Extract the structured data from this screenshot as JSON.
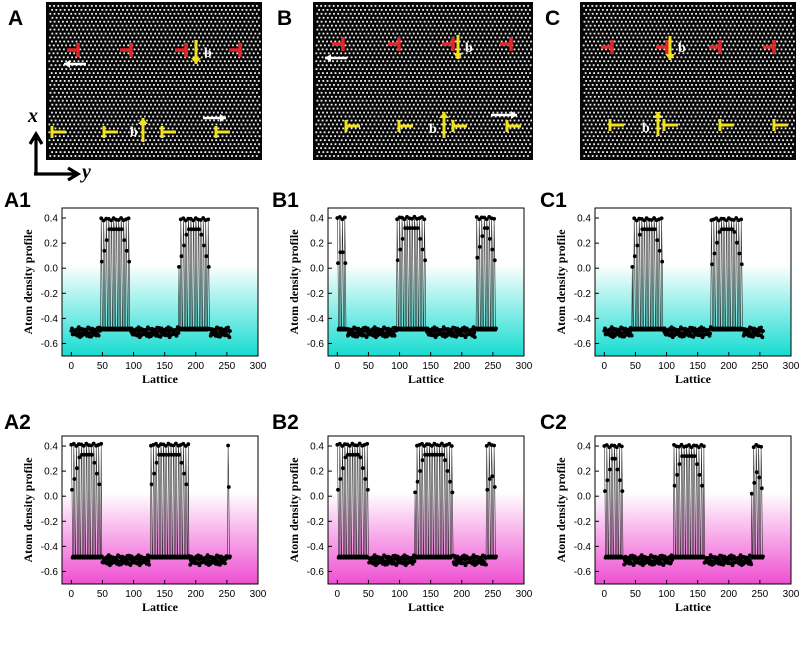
{
  "colors": {
    "dislocation_top": "#e0282a",
    "dislocation_bottom": "#f2e21c",
    "cyan": "#16dcd0",
    "magenta": "#ee4fd2",
    "atoms": "#eeeeee"
  },
  "panels": {
    "A": "A",
    "B": "B",
    "C": "C",
    "A1": "A1",
    "B1": "B1",
    "C1": "C1",
    "A2": "A2",
    "B2": "B2",
    "C2": "C2"
  },
  "coordinate_axes": {
    "x": "x",
    "y": "y"
  },
  "burgers_label": "b",
  "snapshots": [
    {
      "id": "A",
      "top_dislocations": 4,
      "bottom_dislocations": 5,
      "label_top": "b",
      "label_bottom": "b",
      "arrow_top": "left",
      "arrow_bottom": "right"
    },
    {
      "id": "B",
      "top_dislocations": 4,
      "bottom_dislocations": 5,
      "label_top": "b",
      "label_bottom": "b",
      "arrow_top": "left",
      "arrow_bottom": "right"
    },
    {
      "id": "C",
      "top_dislocations": 4,
      "bottom_dislocations": 4,
      "label_top": "b",
      "label_bottom": "b",
      "arrow_top": "none",
      "arrow_bottom": "none"
    }
  ],
  "chart_data": [
    {
      "id": "A1",
      "type": "scatter",
      "series_style": "line+markers",
      "xlabel": "Lattice",
      "ylabel": "Atom density profile",
      "xlim": [
        -15,
        300
      ],
      "ylim": [
        -0.7,
        0.48
      ],
      "xticks": [
        0,
        50,
        100,
        150,
        200,
        250,
        300
      ],
      "yticks": [
        -0.6,
        -0.4,
        -0.2,
        0.0,
        0.2,
        0.4
      ],
      "ytick_labels": [
        "-0.6",
        "-0.4",
        "-0.2",
        "0.0",
        "0.2",
        "0.4"
      ],
      "background_gradient": "cyan",
      "n_points": 256,
      "lattice_max": 255,
      "high_density_bands": [
        [
          47,
          95
        ],
        [
          173,
          221
        ]
      ],
      "low_level": -0.5,
      "high_level": 0.39
    },
    {
      "id": "B1",
      "type": "scatter",
      "series_style": "line+markers",
      "xlabel": "Lattice",
      "ylabel": "Atom density profile",
      "xlim": [
        -15,
        300
      ],
      "ylim": [
        -0.7,
        0.48
      ],
      "xticks": [
        0,
        50,
        100,
        150,
        200,
        250,
        300
      ],
      "yticks": [
        -0.6,
        -0.4,
        -0.2,
        0.0,
        0.2,
        0.4
      ],
      "ytick_labels": [
        "-0.6",
        "-0.4",
        "-0.2",
        "0.0",
        "0.2",
        "0.4"
      ],
      "background_gradient": "cyan",
      "n_points": 256,
      "lattice_max": 255,
      "high_density_bands": [
        [
          0,
          14
        ],
        [
          95,
          143
        ],
        [
          222,
          255
        ]
      ],
      "low_level": -0.5,
      "high_level": 0.4
    },
    {
      "id": "C1",
      "type": "scatter",
      "series_style": "line+markers",
      "xlabel": "Lattice",
      "ylabel": "Atom density profile",
      "xlim": [
        -15,
        300
      ],
      "ylim": [
        -0.7,
        0.48
      ],
      "xticks": [
        0,
        50,
        100,
        150,
        200,
        250,
        300
      ],
      "yticks": [
        -0.6,
        -0.4,
        -0.2,
        0.0,
        0.2,
        0.4
      ],
      "ytick_labels": [
        "-0.6",
        "-0.4",
        "-0.2",
        "0.0",
        "0.2",
        "0.4"
      ],
      "background_gradient": "cyan",
      "n_points": 256,
      "lattice_max": 255,
      "high_density_bands": [
        [
          45,
          95
        ],
        [
          172,
          222
        ]
      ],
      "low_level": -0.5,
      "high_level": 0.39
    },
    {
      "id": "A2",
      "type": "scatter",
      "series_style": "line+markers",
      "xlabel": "Lattice",
      "ylabel": "Atom density profile",
      "xlim": [
        -15,
        300
      ],
      "ylim": [
        -0.7,
        0.48
      ],
      "xticks": [
        0,
        50,
        100,
        150,
        200,
        250,
        300
      ],
      "yticks": [
        -0.6,
        -0.4,
        -0.2,
        0.0,
        0.2,
        0.4
      ],
      "ytick_labels": [
        "-0.6",
        "-0.4",
        "-0.2",
        "0.0",
        "0.2",
        "0.4"
      ],
      "background_gradient": "magenta",
      "n_points": 256,
      "lattice_max": 255,
      "high_density_bands": [
        [
          0,
          48
        ],
        [
          126,
          188
        ],
        [
          250,
          255
        ]
      ],
      "low_level": -0.5,
      "high_level": 0.41
    },
    {
      "id": "B2",
      "type": "scatter",
      "series_style": "line+markers",
      "xlabel": "Lattice",
      "ylabel": "Atom density profile",
      "xlim": [
        -15,
        300
      ],
      "ylim": [
        -0.7,
        0.48
      ],
      "xticks": [
        0,
        50,
        100,
        150,
        200,
        250,
        300
      ],
      "yticks": [
        -0.6,
        -0.4,
        -0.2,
        0.0,
        0.2,
        0.4
      ],
      "ytick_labels": [
        "-0.6",
        "-0.4",
        "-0.2",
        "0.0",
        "0.2",
        "0.4"
      ],
      "background_gradient": "magenta",
      "n_points": 256,
      "lattice_max": 255,
      "high_density_bands": [
        [
          0,
          50
        ],
        [
          125,
          185
        ],
        [
          240,
          255
        ]
      ],
      "low_level": -0.5,
      "high_level": 0.41
    },
    {
      "id": "C2",
      "type": "scatter",
      "series_style": "line+markers",
      "xlabel": "Lattice",
      "ylabel": "Atom density profile",
      "xlim": [
        -15,
        300
      ],
      "ylim": [
        -0.7,
        0.48
      ],
      "xticks": [
        0,
        50,
        100,
        150,
        200,
        250,
        300
      ],
      "yticks": [
        -0.6,
        -0.4,
        -0.2,
        0.0,
        0.2,
        0.4
      ],
      "ytick_labels": [
        "-0.6",
        "-0.4",
        "-0.2",
        "0.0",
        "0.2",
        "0.4"
      ],
      "background_gradient": "magenta",
      "n_points": 256,
      "lattice_max": 255,
      "high_density_bands": [
        [
          0,
          30
        ],
        [
          110,
          160
        ],
        [
          237,
          255
        ]
      ],
      "low_level": -0.5,
      "high_level": 0.4
    }
  ]
}
